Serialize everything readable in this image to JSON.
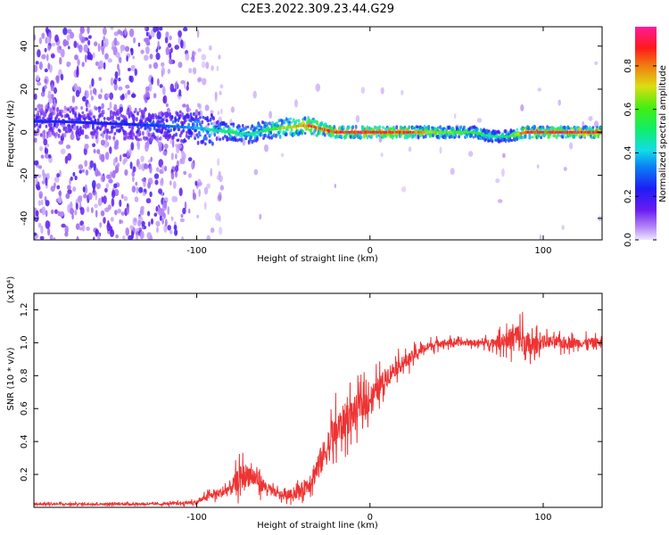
{
  "title": "C2E3.2022.309.23.44.G29",
  "colors": {
    "snr_line": "#ee3333",
    "spectrum_low": "#e6ddfa",
    "spectrum_mid": "#7a1ff0",
    "spectrum_high": "#ff1a1a"
  },
  "chart_data": [
    {
      "type": "heatmap",
      "title": "C2E3.2022.309.23.44.G29",
      "xlabel": "Height of straight line (km)",
      "ylabel": "Frequency (Hz)",
      "xlim": [
        -194,
        134
      ],
      "ylim": [
        -50,
        49
      ],
      "x_ticks": [
        "-100",
        "0",
        "100"
      ],
      "y_ticks": [
        "-40",
        "-20",
        "0",
        "20",
        "40"
      ],
      "colorbar": {
        "label": "Normalized spectral amplitude",
        "range": [
          0.0,
          0.98
        ],
        "ticks": [
          "0.0",
          "0.2",
          "0.4",
          "0.6",
          "0.8"
        ],
        "colormap": "rainbow (violet → blue → cyan → green → yellow → red → magenta)"
      },
      "ridge": {
        "description": "spectral peak frequency vs height",
        "x": [
          -180,
          -150,
          -120,
          -100,
          -90,
          -80,
          -70,
          -60,
          -50,
          -40,
          -35,
          -30,
          -20,
          0,
          20,
          40,
          60,
          70,
          80,
          90,
          100,
          110,
          120,
          134
        ],
        "y": [
          5,
          4,
          3,
          2,
          1,
          0,
          -1,
          1,
          2,
          3,
          3,
          2,
          0,
          0,
          0,
          0,
          0,
          -2,
          -2,
          0,
          0,
          0,
          0,
          0
        ],
        "amplitude": [
          0.25,
          0.25,
          0.3,
          0.4,
          0.5,
          0.55,
          0.5,
          0.55,
          0.7,
          0.8,
          0.9,
          0.85,
          0.95,
          0.95,
          0.95,
          0.7,
          0.6,
          0.5,
          0.55,
          0.95,
          0.95,
          0.95,
          0.95,
          0.9
        ]
      }
    },
    {
      "type": "line",
      "xlabel": "Height of straight line (km)",
      "ylabel": "SNR (10 * v/v)",
      "multiplier": "(x10⁴)",
      "xlim": [
        -194,
        134
      ],
      "ylim": [
        0.0,
        1.3
      ],
      "x_ticks": [
        "-100",
        "0",
        "100"
      ],
      "y_ticks": [
        "0.2",
        "0.4",
        "0.6",
        "0.8",
        "1.0",
        "1.2"
      ],
      "series": [
        {
          "x": [
            -194,
            -180,
            -160,
            -140,
            -120,
            -100,
            -95,
            -90,
            -85,
            -80,
            -75,
            -70,
            -65,
            -60,
            -55,
            -50,
            -45,
            -40,
            -35,
            -30,
            -25,
            -20,
            -15,
            -10,
            -5,
            0,
            5,
            10,
            15,
            20,
            25,
            30,
            40,
            50,
            60,
            70,
            80,
            85,
            90,
            95,
            100,
            110,
            120,
            134
          ],
          "values": [
            0.02,
            0.02,
            0.02,
            0.02,
            0.02,
            0.03,
            0.06,
            0.08,
            0.09,
            0.12,
            0.18,
            0.2,
            0.17,
            0.12,
            0.09,
            0.07,
            0.08,
            0.1,
            0.15,
            0.25,
            0.35,
            0.45,
            0.52,
            0.57,
            0.62,
            0.66,
            0.72,
            0.8,
            0.85,
            0.88,
            0.92,
            0.96,
            1.0,
            1.0,
            1.0,
            1.0,
            1.02,
            1.04,
            0.98,
            0.98,
            1.01,
            1.0,
            1.0,
            1.0
          ],
          "noise": [
            0.01,
            0.01,
            0.01,
            0.01,
            0.01,
            0.02,
            0.03,
            0.04,
            0.05,
            0.08,
            0.12,
            0.12,
            0.1,
            0.06,
            0.04,
            0.04,
            0.05,
            0.07,
            0.1,
            0.14,
            0.16,
            0.18,
            0.18,
            0.16,
            0.14,
            0.14,
            0.12,
            0.1,
            0.08,
            0.07,
            0.06,
            0.05,
            0.04,
            0.03,
            0.03,
            0.04,
            0.1,
            0.14,
            0.16,
            0.1,
            0.06,
            0.06,
            0.05,
            0.05
          ]
        }
      ]
    }
  ]
}
